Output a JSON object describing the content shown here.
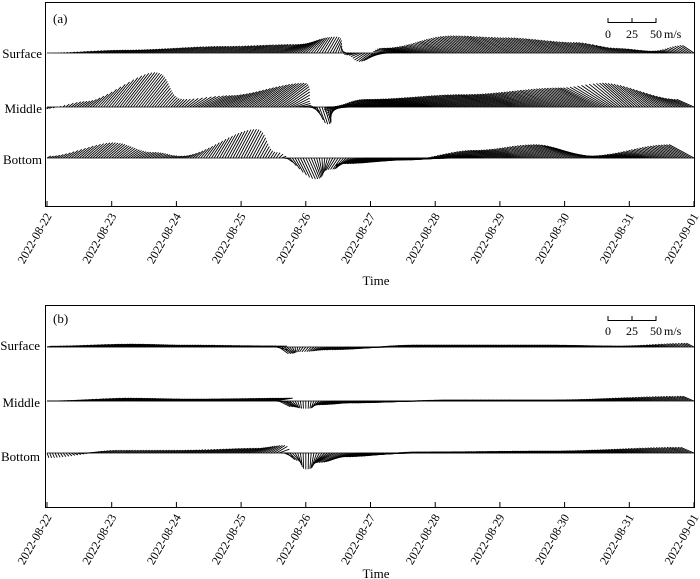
{
  "chart_data": [
    {
      "type": "stick-plot",
      "panel_label": "(a)",
      "xlabel": "Time",
      "x_ticks": [
        "2022-08-22",
        "2022-08-23",
        "2022-08-24",
        "2022-08-25",
        "2022-08-26",
        "2022-08-27",
        "2022-08-28",
        "2022-08-29",
        "2022-08-30",
        "2022-08-31",
        "2022-09-01"
      ],
      "series": [
        {
          "name": "Surface",
          "keypoints": [
            {
              "t": "2022-08-22T00",
              "u": 0,
              "v": 0
            },
            {
              "t": "2022-08-23T00",
              "u": 12,
              "v": 3
            },
            {
              "t": "2022-08-24T12",
              "u": 18,
              "v": 7
            },
            {
              "t": "2022-08-25T12",
              "u": 24,
              "v": 9
            },
            {
              "t": "2022-08-26T08",
              "u": 10,
              "v": 17
            },
            {
              "t": "2022-08-26T18",
              "u": -8,
              "v": -2
            },
            {
              "t": "2022-08-27T00",
              "u": -12,
              "v": -9
            },
            {
              "t": "2022-08-27T12",
              "u": -22,
              "v": 5
            },
            {
              "t": "2022-08-28T18",
              "u": -32,
              "v": 18
            },
            {
              "t": "2022-08-29T12",
              "u": -28,
              "v": 16
            },
            {
              "t": "2022-08-30T12",
              "u": -22,
              "v": 11
            },
            {
              "t": "2022-08-31T00",
              "u": -14,
              "v": 5
            },
            {
              "t": "2022-08-31T12",
              "u": -10,
              "v": 2
            },
            {
              "t": "2022-09-01T00",
              "u": -12,
              "v": 8
            }
          ]
        },
        {
          "name": "Middle",
          "keypoints": [
            {
              "t": "2022-08-22T00",
              "u": -4,
              "v": -2
            },
            {
              "t": "2022-08-22T12",
              "u": 8,
              "v": 6
            },
            {
              "t": "2022-08-23T06",
              "u": 28,
              "v": 36
            },
            {
              "t": "2022-08-24T00",
              "u": 8,
              "v": 8
            },
            {
              "t": "2022-08-24T12",
              "u": 22,
              "v": 12
            },
            {
              "t": "2022-08-25T12",
              "u": 32,
              "v": 25
            },
            {
              "t": "2022-08-26T00",
              "u": 10,
              "v": 0
            },
            {
              "t": "2022-08-26T06",
              "u": 6,
              "v": -18
            },
            {
              "t": "2022-08-26T18",
              "u": -28,
              "v": 0
            },
            {
              "t": "2022-08-27T12",
              "u": -38,
              "v": 8
            },
            {
              "t": "2022-08-29T00",
              "u": -38,
              "v": 13
            },
            {
              "t": "2022-08-30T12",
              "u": -38,
              "v": 20
            },
            {
              "t": "2022-08-31T00",
              "u": -28,
              "v": 25
            },
            {
              "t": "2022-09-01T00",
              "u": -18,
              "v": 8
            }
          ]
        },
        {
          "name": "Bottom",
          "keypoints": [
            {
              "t": "2022-08-22T00",
              "u": 4,
              "v": 2
            },
            {
              "t": "2022-08-22T18",
              "u": 18,
              "v": 16
            },
            {
              "t": "2022-08-23T12",
              "u": 10,
              "v": 6
            },
            {
              "t": "2022-08-24T00",
              "u": 6,
              "v": 2
            },
            {
              "t": "2022-08-25T00",
              "u": 16,
              "v": 30
            },
            {
              "t": "2022-08-25T12",
              "u": 4,
              "v": 6
            },
            {
              "t": "2022-08-26T00",
              "u": 10,
              "v": -22
            },
            {
              "t": "2022-08-26T12",
              "u": -8,
              "v": -12
            },
            {
              "t": "2022-08-27T00",
              "u": -30,
              "v": -6
            },
            {
              "t": "2022-08-28T00",
              "u": -30,
              "v": -2
            },
            {
              "t": "2022-08-29T00",
              "u": -28,
              "v": 8
            },
            {
              "t": "2022-08-30T00",
              "u": -30,
              "v": 14
            },
            {
              "t": "2022-08-30T18",
              "u": -26,
              "v": 2
            },
            {
              "t": "2022-09-01T00",
              "u": -26,
              "v": 14
            }
          ]
        }
      ],
      "scale_bar": {
        "ticks": [
          "0",
          "25",
          "50"
        ],
        "unit": "m/s"
      }
    },
    {
      "type": "stick-plot",
      "panel_label": "(b)",
      "xlabel": "Time",
      "x_ticks": [
        "2022-08-22",
        "2022-08-23",
        "2022-08-24",
        "2022-08-25",
        "2022-08-26",
        "2022-08-27",
        "2022-08-28",
        "2022-08-29",
        "2022-08-30",
        "2022-08-31",
        "2022-09-01"
      ],
      "series": [
        {
          "name": "Surface",
          "keypoints": [
            {
              "t": "2022-08-22T00",
              "u": 6,
              "v": 1
            },
            {
              "t": "2022-08-23T00",
              "u": 20,
              "v": 3
            },
            {
              "t": "2022-08-24T00",
              "u": 12,
              "v": 2
            },
            {
              "t": "2022-08-25T12",
              "u": 14,
              "v": 1
            },
            {
              "t": "2022-08-25T14",
              "u": 10,
              "v": -7
            },
            {
              "t": "2022-08-26T00",
              "u": -4,
              "v": -5
            },
            {
              "t": "2022-08-26T12",
              "u": -12,
              "v": -3
            },
            {
              "t": "2022-08-28T00",
              "u": -20,
              "v": 2
            },
            {
              "t": "2022-08-30T00",
              "u": -18,
              "v": 2
            },
            {
              "t": "2022-08-31T00",
              "u": -12,
              "v": 1
            },
            {
              "t": "2022-09-01T00",
              "u": -8,
              "v": 4
            }
          ]
        },
        {
          "name": "Middle",
          "keypoints": [
            {
              "t": "2022-08-22T00",
              "u": 4,
              "v": 0
            },
            {
              "t": "2022-08-23T00",
              "u": 18,
              "v": 3
            },
            {
              "t": "2022-08-24T00",
              "u": 18,
              "v": 2
            },
            {
              "t": "2022-08-25T12",
              "u": 20,
              "v": 3
            },
            {
              "t": "2022-08-25T14",
              "u": 12,
              "v": -6
            },
            {
              "t": "2022-08-26T00",
              "u": 0,
              "v": -8
            },
            {
              "t": "2022-08-26T12",
              "u": -20,
              "v": -4
            },
            {
              "t": "2022-08-27T00",
              "u": -22,
              "v": -2
            },
            {
              "t": "2022-08-28T12",
              "u": -18,
              "v": 1
            },
            {
              "t": "2022-08-30T00",
              "u": -18,
              "v": 1
            },
            {
              "t": "2022-09-01T00",
              "u": -12,
              "v": 5
            }
          ]
        },
        {
          "name": "Bottom",
          "keypoints": [
            {
              "t": "2022-08-22T00",
              "u": 2,
              "v": -5
            },
            {
              "t": "2022-08-23T00",
              "u": 8,
              "v": 3
            },
            {
              "t": "2022-08-24T00",
              "u": 10,
              "v": 3
            },
            {
              "t": "2022-08-25T00",
              "u": 16,
              "v": 5
            },
            {
              "t": "2022-08-25T12",
              "u": 12,
              "v": 8
            },
            {
              "t": "2022-08-25T18",
              "u": 8,
              "v": -8
            },
            {
              "t": "2022-08-26T00",
              "u": 0,
              "v": -17
            },
            {
              "t": "2022-08-26T12",
              "u": -20,
              "v": -10
            },
            {
              "t": "2022-08-27T00",
              "u": -28,
              "v": -4
            },
            {
              "t": "2022-08-28T00",
              "u": -20,
              "v": 1
            },
            {
              "t": "2022-08-30T00",
              "u": -18,
              "v": 2
            },
            {
              "t": "2022-09-01T00",
              "u": -14,
              "v": 6
            }
          ]
        }
      ],
      "scale_bar": {
        "ticks": [
          "0",
          "25",
          "50"
        ],
        "unit": "m/s"
      }
    }
  ]
}
